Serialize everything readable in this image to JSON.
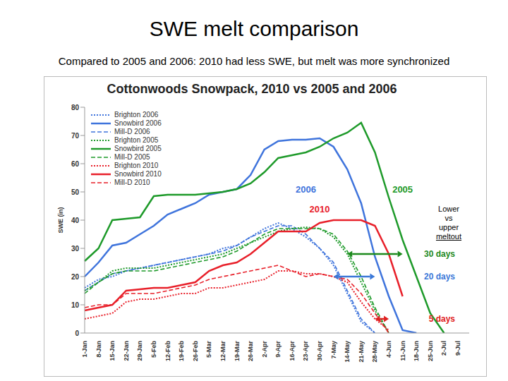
{
  "slide": {
    "title": "SWE melt comparison",
    "subtitle": "Compared to 2005 and 2006:  2010 had less SWE, but melt was more synchronized"
  },
  "chart_data": {
    "type": "line",
    "title": "Cottonwoods Snowpack, 2010 vs 2005 and 2006",
    "y_label": "SWE (in)",
    "categories": [
      "1-Jan",
      "8-Jan",
      "15-Jan",
      "22-Jan",
      "29-Jan",
      "5-Feb",
      "12-Feb",
      "19-Feb",
      "26-Feb",
      "5-Mar",
      "12-Mar",
      "19-Mar",
      "26-Mar",
      "2-Apr",
      "9-Apr",
      "16-Apr",
      "23-Apr",
      "30-Apr",
      "7-May",
      "14-May",
      "21-May",
      "28-May",
      "4-Jun",
      "11-Jun",
      "18-Jun",
      "25-Jun",
      "2-Jul",
      "9-Jul"
    ],
    "ylim": [
      0,
      80
    ],
    "yticks": [
      0,
      10,
      20,
      30,
      40,
      50,
      60,
      70,
      80
    ],
    "grid": false,
    "legend": "top-left",
    "series": [
      {
        "name": "Brighton 2006",
        "color": "#3f74dc",
        "line_style": "dotted",
        "values": [
          16,
          19,
          20,
          22,
          23,
          24,
          25,
          26,
          27,
          28,
          30,
          31,
          34,
          37,
          39,
          37,
          34,
          30,
          24,
          14,
          4,
          0,
          null,
          null,
          null,
          null,
          null,
          null
        ]
      },
      {
        "name": "Snowbird 2006",
        "color": "#3f74dc",
        "line_style": "solid",
        "values": [
          20,
          25,
          31,
          32,
          35,
          38,
          42,
          44,
          46,
          49,
          50,
          51,
          56,
          65,
          68,
          68.5,
          68.5,
          69,
          66,
          58,
          46,
          27,
          13,
          1,
          0,
          null,
          null,
          null
        ]
      },
      {
        "name": "Mill-D 2006",
        "color": "#3f74dc",
        "line_style": "dashed",
        "values": [
          15,
          18,
          21,
          22,
          23,
          24,
          25,
          26,
          27,
          28,
          29,
          31,
          34,
          36,
          38,
          38,
          35,
          30,
          25,
          15,
          5,
          0,
          null,
          null,
          null,
          null,
          null,
          null
        ]
      },
      {
        "name": "Brighton 2005",
        "color": "#1e9a2a",
        "line_style": "dotted",
        "values": [
          15,
          18,
          22,
          23,
          23,
          23,
          24,
          25,
          26,
          27,
          28,
          30,
          32,
          34,
          36,
          37,
          37.5,
          37,
          34,
          28,
          18,
          8,
          0,
          null,
          null,
          null,
          null,
          null
        ]
      },
      {
        "name": "Snowbird 2005",
        "color": "#1e9a2a",
        "line_style": "solid",
        "values": [
          25.5,
          30,
          40,
          40.5,
          41,
          48.5,
          49,
          49,
          49,
          49.5,
          50,
          51,
          53,
          57,
          62,
          63,
          64,
          66,
          69,
          71,
          74.5,
          64,
          48,
          33,
          20,
          7,
          0,
          null
        ]
      },
      {
        "name": "Mill-D 2005",
        "color": "#1e9a2a",
        "line_style": "dashed",
        "values": [
          14,
          18,
          21,
          22,
          22,
          22,
          23,
          24,
          25,
          26,
          27,
          29,
          32,
          35,
          37,
          37,
          37,
          37,
          35,
          29,
          20,
          9,
          0,
          null,
          null,
          null,
          null,
          null
        ]
      },
      {
        "name": "Brighton 2010",
        "color": "#e8202a",
        "line_style": "dotted",
        "values": [
          5,
          6,
          7,
          11,
          12,
          12,
          13,
          14,
          14,
          16,
          16,
          17,
          18,
          19,
          22,
          22,
          21,
          21,
          20,
          18,
          11,
          5,
          1,
          null,
          null,
          null,
          null,
          null
        ]
      },
      {
        "name": "Snowbird 2010",
        "color": "#e8202a",
        "line_style": "solid",
        "values": [
          8,
          9,
          10,
          15,
          15.5,
          16,
          16,
          17,
          18,
          22,
          24,
          25,
          28,
          32,
          36,
          36,
          36,
          39,
          40,
          40,
          40,
          38,
          28,
          13,
          null,
          null,
          null,
          null
        ]
      },
      {
        "name": "Mill-D 2010",
        "color": "#e8202a",
        "line_style": "dashed",
        "values": [
          9,
          10,
          10,
          14,
          14,
          14,
          15,
          16,
          17,
          19,
          20,
          21,
          22,
          23,
          24,
          22,
          20,
          21,
          20,
          19,
          14,
          7,
          0,
          null,
          null,
          null,
          null,
          null
        ]
      }
    ],
    "labels": [
      {
        "text": "2006",
        "x": "23-Apr",
        "y": 51,
        "color": "#3f74dc"
      },
      {
        "text": "2005",
        "x": "11-Jun",
        "y": 51,
        "color": "#1e9a2a"
      },
      {
        "text": "2010",
        "x": "30-Apr",
        "y": 44,
        "color": "#e8202a"
      }
    ],
    "arrows": [
      {
        "text": "30 days",
        "from": "14-May",
        "to": "11-Jun",
        "y": 28,
        "color": "#1e8a1e"
      },
      {
        "text": "20 days",
        "from": "7-May",
        "to": "28-May",
        "y": 20,
        "color": "#3a78d8"
      },
      {
        "text": "5 days",
        "from": "28-May",
        "to": "4-Jun",
        "y": 5,
        "color": "#e02020"
      }
    ],
    "note": "Lower vs upper meltout"
  }
}
